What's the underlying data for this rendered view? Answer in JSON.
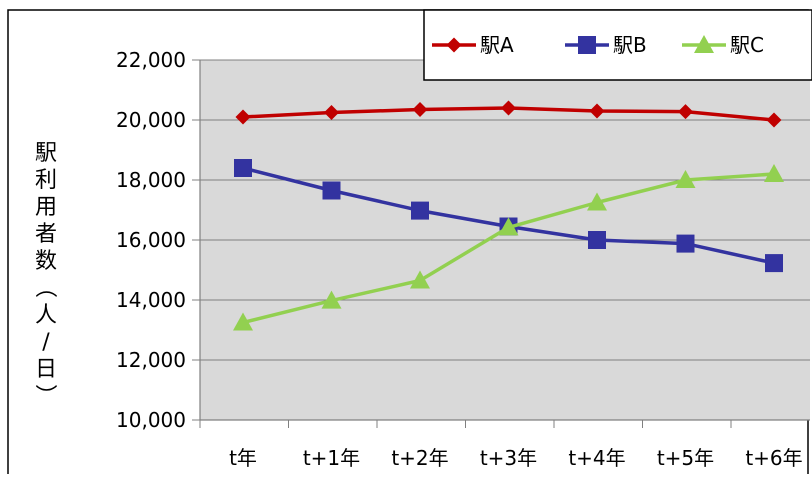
{
  "chart_data": {
    "type": "line",
    "title": "",
    "xlabel": "",
    "ylabel": "駅利用者数（人/日）",
    "categories": [
      "t年",
      "t+1年",
      "t+2年",
      "t+3年",
      "t+4年",
      "t+5年",
      "t+6年"
    ],
    "ylim": [
      10000,
      22000
    ],
    "yticks": [
      10000,
      12000,
      14000,
      16000,
      18000,
      20000,
      22000
    ],
    "ytick_labels": [
      "10,000",
      "12,000",
      "14,000",
      "16,000",
      "18,000",
      "20,000",
      "22,000"
    ],
    "grid": true,
    "legend_position": "top-right",
    "series": [
      {
        "name": "駅A",
        "color": "#c00000",
        "marker": "diamond",
        "values": [
          20100,
          20250,
          20350,
          20400,
          20300,
          20280,
          20000
        ]
      },
      {
        "name": "駅B",
        "color": "#3333a0",
        "marker": "square",
        "values": [
          18400,
          17650,
          16980,
          16450,
          16000,
          15880,
          15230
        ]
      },
      {
        "name": "駅C",
        "color": "#92d050",
        "marker": "triangle",
        "values": [
          13250,
          13980,
          14650,
          16420,
          17250,
          18000,
          18200
        ]
      }
    ]
  }
}
